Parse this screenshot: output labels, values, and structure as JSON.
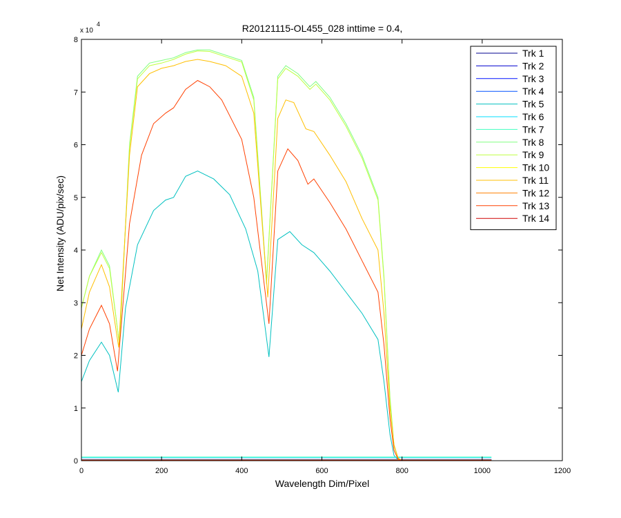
{
  "chart_data": {
    "type": "line",
    "title": "R20121115-OL455_028 inttime = 0.4,",
    "xlabel": "Wavelength Dim/Pixel",
    "ylabel": "Net Intensity (ADU/pix/sec)",
    "y_exponent_label": "x 10",
    "y_exponent_power": "4",
    "xlim": [
      0,
      1200
    ],
    "ylim": [
      0,
      8
    ],
    "xticks": [
      0,
      200,
      400,
      600,
      800,
      1000,
      1200
    ],
    "yticks": [
      0,
      1,
      2,
      3,
      4,
      5,
      6,
      7,
      8
    ],
    "grid": false,
    "legend_position": "top-right",
    "series": [
      {
        "name": "Trk 1",
        "color": "#00008F",
        "x": [
          0,
          1023
        ],
        "y": [
          0.01,
          0.01
        ]
      },
      {
        "name": "Trk 2",
        "color": "#0000CF",
        "x": [
          0,
          1023
        ],
        "y": [
          0.015,
          0.015
        ]
      },
      {
        "name": "Trk 3",
        "color": "#0010FF",
        "x": [
          0,
          1023
        ],
        "y": [
          0.02,
          0.02
        ]
      },
      {
        "name": "Trk 4",
        "color": "#0050FF",
        "x": [
          0,
          1023
        ],
        "y": [
          0.025,
          0.025
        ]
      },
      {
        "name": "Trk 5",
        "color": "#00C0C0",
        "x": [
          0,
          20,
          50,
          70,
          92,
          110,
          140,
          180,
          210,
          230,
          260,
          290,
          330,
          370,
          410,
          440,
          468,
          490,
          520,
          550,
          580,
          620,
          660,
          700,
          740,
          755,
          770,
          780,
          790,
          800
        ],
        "y": [
          1.5,
          1.9,
          2.25,
          2.0,
          1.3,
          2.9,
          4.1,
          4.75,
          4.95,
          5.0,
          5.4,
          5.5,
          5.35,
          5.05,
          4.4,
          3.6,
          1.97,
          4.2,
          4.35,
          4.1,
          3.95,
          3.6,
          3.2,
          2.8,
          2.3,
          1.5,
          0.5,
          0.1,
          0.02,
          0.0
        ]
      },
      {
        "name": "Trk 6",
        "color": "#00DFFF",
        "x": [
          0,
          1023
        ],
        "y": [
          0.06,
          0.06
        ]
      },
      {
        "name": "Trk 7",
        "color": "#40FFBF",
        "x": [
          0,
          1023
        ],
        "y": [
          0.07,
          0.07
        ]
      },
      {
        "name": "Trk 8",
        "color": "#80FF80",
        "x": [
          0,
          20,
          50,
          70,
          95,
          120,
          140,
          170,
          200,
          230,
          260,
          290,
          320,
          360,
          400,
          430,
          462,
          490,
          510,
          540,
          570,
          585,
          620,
          660,
          700,
          740,
          755,
          770,
          780,
          790,
          800
        ],
        "y": [
          2.9,
          3.5,
          4.0,
          3.7,
          2.2,
          6.0,
          7.3,
          7.55,
          7.6,
          7.65,
          7.75,
          7.8,
          7.8,
          7.7,
          7.6,
          6.9,
          3.4,
          7.3,
          7.5,
          7.35,
          7.1,
          7.2,
          6.9,
          6.4,
          5.8,
          5.0,
          3.5,
          1.2,
          0.3,
          0.05,
          0.0
        ]
      },
      {
        "name": "Trk 9",
        "color": "#BFFF40",
        "x": [
          0,
          20,
          50,
          70,
          95,
          120,
          140,
          170,
          200,
          230,
          260,
          290,
          320,
          360,
          400,
          430,
          462,
          490,
          510,
          540,
          570,
          585,
          620,
          660,
          700,
          740,
          755,
          770,
          780,
          790,
          800
        ],
        "y": [
          2.9,
          3.5,
          3.95,
          3.65,
          2.2,
          5.95,
          7.25,
          7.5,
          7.55,
          7.62,
          7.72,
          7.78,
          7.77,
          7.67,
          7.57,
          6.85,
          3.35,
          7.25,
          7.45,
          7.3,
          7.05,
          7.15,
          6.85,
          6.35,
          5.75,
          4.95,
          3.45,
          1.15,
          0.28,
          0.05,
          0.0
        ]
      },
      {
        "name": "Trk 10",
        "color": "#FFFF00",
        "x": [
          0,
          1023
        ],
        "y": [
          0.01,
          0.01
        ]
      },
      {
        "name": "Trk 11",
        "color": "#FFBF00",
        "x": [
          0,
          20,
          50,
          70,
          93,
          120,
          140,
          170,
          200,
          230,
          260,
          290,
          320,
          360,
          400,
          430,
          465,
          490,
          510,
          530,
          560,
          580,
          620,
          660,
          700,
          740,
          755,
          770,
          780,
          790,
          800
        ],
        "y": [
          2.5,
          3.2,
          3.72,
          3.3,
          2.15,
          5.8,
          7.1,
          7.35,
          7.45,
          7.5,
          7.58,
          7.62,
          7.58,
          7.5,
          7.3,
          6.6,
          3.1,
          6.5,
          6.85,
          6.8,
          6.3,
          6.25,
          5.8,
          5.3,
          4.6,
          4.0,
          2.8,
          1.0,
          0.3,
          0.05,
          0.0
        ]
      },
      {
        "name": "Trk 12",
        "color": "#FF8000",
        "x": [
          0,
          1023
        ],
        "y": [
          0.015,
          0.015
        ]
      },
      {
        "name": "Trk 13",
        "color": "#FF4000",
        "x": [
          0,
          20,
          50,
          70,
          90,
          120,
          150,
          180,
          210,
          230,
          260,
          290,
          320,
          350,
          400,
          430,
          468,
          490,
          515,
          540,
          565,
          580,
          620,
          660,
          700,
          740,
          755,
          770,
          780,
          790,
          800
        ],
        "y": [
          2.0,
          2.5,
          2.95,
          2.6,
          1.7,
          4.5,
          5.8,
          6.4,
          6.6,
          6.7,
          7.05,
          7.22,
          7.1,
          6.85,
          6.1,
          5.0,
          2.6,
          5.5,
          5.92,
          5.7,
          5.25,
          5.35,
          4.9,
          4.4,
          3.8,
          3.2,
          2.2,
          0.8,
          0.2,
          0.03,
          0.0
        ]
      },
      {
        "name": "Trk 14",
        "color": "#CF0000",
        "x": [
          0,
          1023
        ],
        "y": [
          0.005,
          0.005
        ]
      }
    ]
  }
}
